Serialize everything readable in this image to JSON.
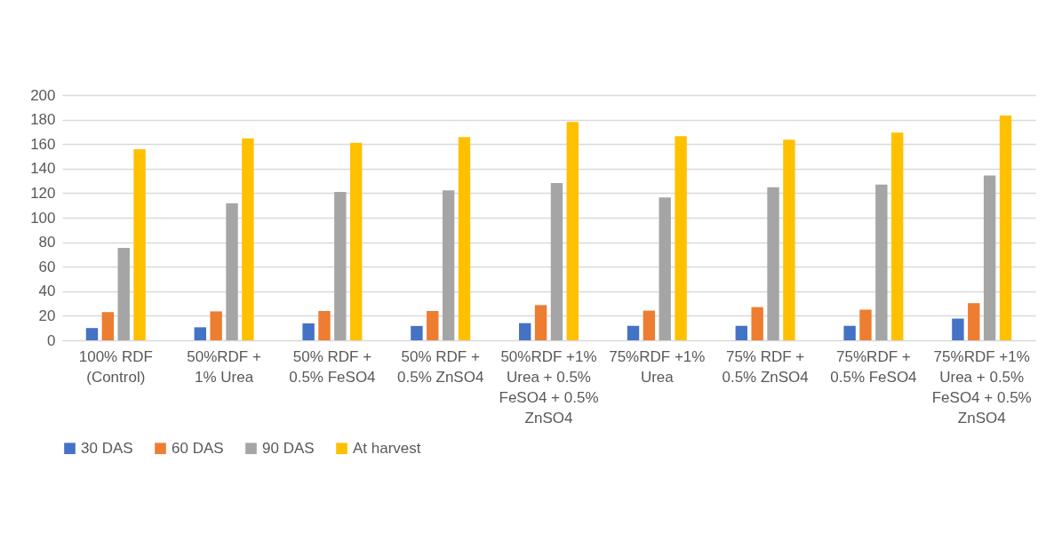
{
  "chart_data": {
    "type": "bar",
    "categories": [
      "100% RDF (Control)",
      "50%RDF + 1% Urea",
      "50% RDF + 0.5% FeSO4",
      "50% RDF + 0.5% ZnSO4",
      "50%RDF +1% Urea + 0.5% FeSO4 + 0.5% ZnSO4",
      "75%RDF +1% Urea",
      "75% RDF + 0.5% ZnSO4",
      "75%RDF + 0.5% FeSO4",
      "75%RDF +1% Urea + 0.5% FeSO4 + 0.5% ZnSO4"
    ],
    "series": [
      {
        "name": "30 DAS",
        "color": "#4472c4",
        "values": [
          10,
          10.6,
          13.8,
          11.7,
          14,
          11.8,
          11.8,
          11.8,
          17.7
        ]
      },
      {
        "name": "60 DAS",
        "color": "#ed7d31",
        "values": [
          23,
          23.6,
          23.9,
          23.9,
          28.7,
          24.2,
          27.1,
          25,
          30.3
        ]
      },
      {
        "name": "90 DAS",
        "color": "#a5a5a5",
        "values": [
          75.3,
          111.7,
          121,
          122.3,
          128.3,
          116.5,
          124.8,
          127,
          134.5
        ]
      },
      {
        "name": "At harvest",
        "color": "#ffc000",
        "values": [
          155.8,
          164.7,
          161,
          165.7,
          178,
          166.4,
          163.5,
          169.4,
          183.4
        ]
      }
    ],
    "ylim": [
      0,
      200
    ],
    "yticks": [
      0,
      20,
      40,
      60,
      80,
      100,
      120,
      140,
      160,
      180,
      200
    ],
    "grid": "y",
    "legend": "bottom"
  }
}
